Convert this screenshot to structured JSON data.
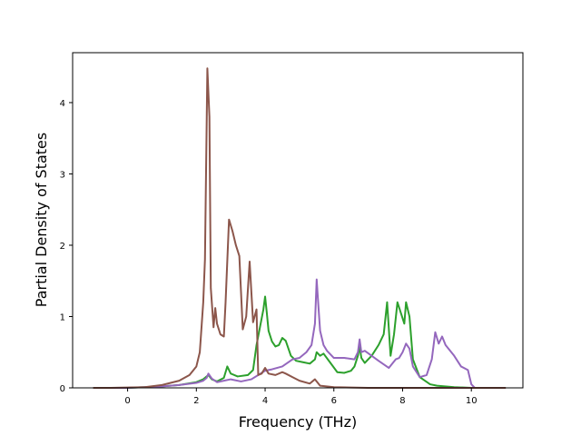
{
  "chart_data": {
    "type": "line",
    "xlabel": "Frequency (THz)",
    "ylabel": "Partial Density of States",
    "xlim": [
      -1.6,
      11.5
    ],
    "ylim": [
      0,
      4.7
    ],
    "xticks": [
      "0",
      "2",
      "4",
      "6",
      "8",
      "10"
    ],
    "xtick_values": [
      0,
      2,
      4,
      6,
      8,
      10
    ],
    "yticks": [
      "0",
      "1",
      "2",
      "3",
      "4"
    ],
    "ytick_values": [
      0,
      1,
      2,
      3,
      4
    ],
    "grid": false,
    "series": [
      {
        "color": "#2ca02c",
        "points": [
          [
            -1,
            0
          ],
          [
            0,
            0
          ],
          [
            1,
            0.02
          ],
          [
            1.5,
            0.04
          ],
          [
            2,
            0.08
          ],
          [
            2.2,
            0.12
          ],
          [
            2.3,
            0.16
          ],
          [
            2.35,
            0.18
          ],
          [
            2.45,
            0.12
          ],
          [
            2.6,
            0.09
          ],
          [
            2.8,
            0.14
          ],
          [
            2.9,
            0.3
          ],
          [
            3.0,
            0.2
          ],
          [
            3.2,
            0.16
          ],
          [
            3.5,
            0.18
          ],
          [
            3.65,
            0.25
          ],
          [
            3.75,
            0.6
          ],
          [
            3.85,
            0.85
          ],
          [
            3.95,
            1.1
          ],
          [
            4.0,
            1.28
          ],
          [
            4.05,
            1.05
          ],
          [
            4.1,
            0.8
          ],
          [
            4.2,
            0.65
          ],
          [
            4.3,
            0.58
          ],
          [
            4.4,
            0.6
          ],
          [
            4.5,
            0.7
          ],
          [
            4.6,
            0.66
          ],
          [
            4.75,
            0.45
          ],
          [
            4.9,
            0.38
          ],
          [
            5.1,
            0.36
          ],
          [
            5.3,
            0.34
          ],
          [
            5.45,
            0.4
          ],
          [
            5.5,
            0.5
          ],
          [
            5.6,
            0.45
          ],
          [
            5.7,
            0.48
          ],
          [
            5.9,
            0.35
          ],
          [
            6.1,
            0.22
          ],
          [
            6.3,
            0.21
          ],
          [
            6.5,
            0.24
          ],
          [
            6.6,
            0.3
          ],
          [
            6.7,
            0.45
          ],
          [
            6.75,
            0.58
          ],
          [
            6.8,
            0.42
          ],
          [
            6.9,
            0.35
          ],
          [
            7.0,
            0.4
          ],
          [
            7.1,
            0.45
          ],
          [
            7.3,
            0.6
          ],
          [
            7.45,
            0.75
          ],
          [
            7.55,
            1.2
          ],
          [
            7.65,
            0.45
          ],
          [
            7.75,
            0.75
          ],
          [
            7.85,
            1.2
          ],
          [
            7.95,
            1.05
          ],
          [
            8.05,
            0.9
          ],
          [
            8.1,
            1.2
          ],
          [
            8.2,
            1.0
          ],
          [
            8.3,
            0.4
          ],
          [
            8.5,
            0.15
          ],
          [
            8.8,
            0.05
          ],
          [
            9.0,
            0.03
          ],
          [
            9.5,
            0.01
          ],
          [
            10,
            0
          ],
          [
            11,
            0
          ]
        ]
      },
      {
        "color": "#9467bd",
        "points": [
          [
            -1,
            0
          ],
          [
            0,
            0
          ],
          [
            1,
            0.02
          ],
          [
            1.5,
            0.04
          ],
          [
            2,
            0.07
          ],
          [
            2.2,
            0.1
          ],
          [
            2.3,
            0.14
          ],
          [
            2.35,
            0.2
          ],
          [
            2.45,
            0.13
          ],
          [
            2.6,
            0.08
          ],
          [
            2.8,
            0.1
          ],
          [
            3.0,
            0.12
          ],
          [
            3.3,
            0.09
          ],
          [
            3.6,
            0.12
          ],
          [
            3.8,
            0.18
          ],
          [
            4.0,
            0.24
          ],
          [
            4.2,
            0.26
          ],
          [
            4.5,
            0.3
          ],
          [
            4.8,
            0.4
          ],
          [
            5.0,
            0.42
          ],
          [
            5.2,
            0.5
          ],
          [
            5.35,
            0.6
          ],
          [
            5.45,
            0.9
          ],
          [
            5.5,
            1.52
          ],
          [
            5.55,
            1.15
          ],
          [
            5.6,
            0.8
          ],
          [
            5.7,
            0.6
          ],
          [
            5.8,
            0.52
          ],
          [
            6.0,
            0.42
          ],
          [
            6.3,
            0.42
          ],
          [
            6.6,
            0.4
          ],
          [
            6.7,
            0.5
          ],
          [
            6.75,
            0.68
          ],
          [
            6.8,
            0.5
          ],
          [
            6.9,
            0.52
          ],
          [
            7.1,
            0.45
          ],
          [
            7.3,
            0.38
          ],
          [
            7.6,
            0.28
          ],
          [
            7.8,
            0.4
          ],
          [
            7.9,
            0.42
          ],
          [
            8.0,
            0.5
          ],
          [
            8.1,
            0.62
          ],
          [
            8.2,
            0.55
          ],
          [
            8.3,
            0.3
          ],
          [
            8.5,
            0.15
          ],
          [
            8.7,
            0.18
          ],
          [
            8.85,
            0.4
          ],
          [
            8.95,
            0.78
          ],
          [
            9.05,
            0.62
          ],
          [
            9.15,
            0.72
          ],
          [
            9.25,
            0.6
          ],
          [
            9.5,
            0.45
          ],
          [
            9.7,
            0.3
          ],
          [
            9.9,
            0.25
          ],
          [
            10.0,
            0.05
          ],
          [
            10.1,
            0
          ],
          [
            11,
            0
          ]
        ]
      },
      {
        "color": "#8c564b",
        "points": [
          [
            -1,
            0
          ],
          [
            -0.5,
            0
          ],
          [
            0,
            0.005
          ],
          [
            0.5,
            0.01
          ],
          [
            1.0,
            0.04
          ],
          [
            1.5,
            0.1
          ],
          [
            1.8,
            0.18
          ],
          [
            2.0,
            0.3
          ],
          [
            2.1,
            0.5
          ],
          [
            2.2,
            1.2
          ],
          [
            2.25,
            1.8
          ],
          [
            2.32,
            4.48
          ],
          [
            2.38,
            3.8
          ],
          [
            2.42,
            1.4
          ],
          [
            2.5,
            0.85
          ],
          [
            2.55,
            1.12
          ],
          [
            2.6,
            0.9
          ],
          [
            2.7,
            0.75
          ],
          [
            2.8,
            0.72
          ],
          [
            2.85,
            1.2
          ],
          [
            2.95,
            2.36
          ],
          [
            3.05,
            2.2
          ],
          [
            3.15,
            2.0
          ],
          [
            3.25,
            1.85
          ],
          [
            3.35,
            0.82
          ],
          [
            3.45,
            1.0
          ],
          [
            3.55,
            1.77
          ],
          [
            3.65,
            0.92
          ],
          [
            3.75,
            1.1
          ],
          [
            3.8,
            0.18
          ],
          [
            3.9,
            0.2
          ],
          [
            4.0,
            0.28
          ],
          [
            4.1,
            0.2
          ],
          [
            4.3,
            0.18
          ],
          [
            4.5,
            0.22
          ],
          [
            4.6,
            0.2
          ],
          [
            4.8,
            0.15
          ],
          [
            5.0,
            0.1
          ],
          [
            5.3,
            0.06
          ],
          [
            5.45,
            0.12
          ],
          [
            5.6,
            0.03
          ],
          [
            6.0,
            0.01
          ],
          [
            6.5,
            0.005
          ],
          [
            7.0,
            0
          ],
          [
            11,
            0
          ]
        ]
      }
    ]
  }
}
